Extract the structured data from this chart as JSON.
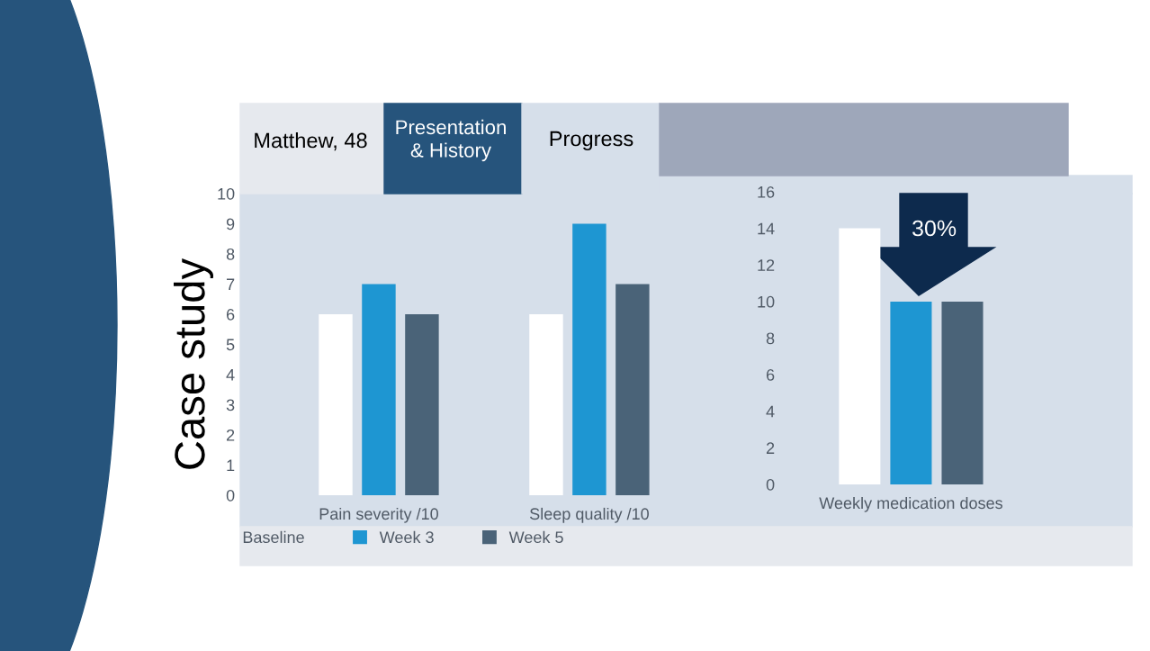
{
  "chart_data": [
    {
      "type": "bar",
      "categories": [
        "Pain severity /10",
        "Sleep quality /10"
      ],
      "series": [
        {
          "name": "Baseline",
          "color": "#ffffff",
          "values": [
            6,
            6
          ]
        },
        {
          "name": "Week 3",
          "color": "#1e96d2",
          "values": [
            7,
            9
          ]
        },
        {
          "name": "Week 5",
          "color": "#4a6378",
          "values": [
            6,
            7
          ]
        }
      ],
      "ylim": [
        0,
        10
      ],
      "yticks": [
        0,
        1,
        2,
        3,
        4,
        5,
        6,
        7,
        8,
        9,
        10
      ],
      "grid": false,
      "legend": "bottom",
      "annotations": [
        "Case study",
        "Matthew, 48",
        "Presentation\n& History",
        "Progress"
      ]
    },
    {
      "type": "bar",
      "categories": [
        null,
        "Weekly medication doses",
        null
      ],
      "values": [
        14,
        10,
        10
      ],
      "colors": [
        "#ffffff",
        "#1e96d2",
        "#4a6378"
      ],
      "ylim": [
        0,
        16
      ],
      "yticks": [
        0,
        2,
        4,
        6,
        8,
        10,
        12,
        14,
        16
      ],
      "grid": false,
      "annotations": [
        "30%"
      ]
    }
  ]
}
